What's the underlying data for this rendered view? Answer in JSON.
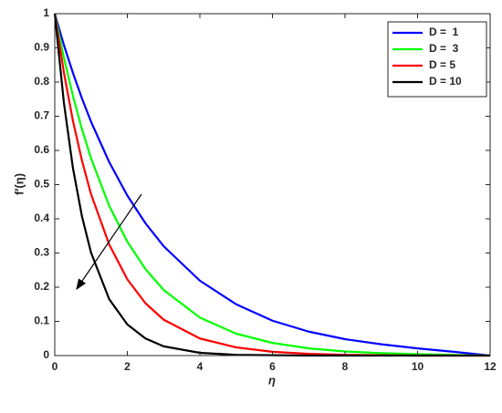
{
  "chart_data": {
    "type": "line",
    "xlabel": "η",
    "ylabel": "f′(η)",
    "x": [
      0,
      0.25,
      0.5,
      0.75,
      1,
      1.5,
      2,
      2.5,
      3,
      4,
      5,
      6,
      7,
      8,
      9,
      10,
      11,
      12
    ],
    "series": [
      {
        "name": "D =  1",
        "color": "#0000ff",
        "values": [
          1,
          0.909,
          0.827,
          0.752,
          0.684,
          0.566,
          0.468,
          0.387,
          0.32,
          0.219,
          0.15,
          0.102,
          0.07,
          0.048,
          0.033,
          0.021,
          0.011,
          0
        ]
      },
      {
        "name": "D =  3",
        "color": "#00ff00",
        "values": [
          1,
          0.872,
          0.76,
          0.662,
          0.577,
          0.438,
          0.333,
          0.253,
          0.192,
          0.111,
          0.064,
          0.037,
          0.021,
          0.012,
          0.007,
          0.004,
          0.002,
          0
        ]
      },
      {
        "name": "D = 5",
        "color": "#ff0000",
        "values": [
          1,
          0.829,
          0.687,
          0.57,
          0.472,
          0.325,
          0.223,
          0.153,
          0.105,
          0.05,
          0.024,
          0.011,
          0.005,
          0.002,
          0.001,
          0,
          0,
          0
        ]
      },
      {
        "name": "D = 10",
        "color": "#000000",
        "values": [
          1,
          0.741,
          0.549,
          0.407,
          0.301,
          0.165,
          0.091,
          0.05,
          0.027,
          0.008,
          0.002,
          0.001,
          0,
          0,
          0,
          0,
          0,
          0
        ]
      }
    ],
    "xlim": [
      0,
      12
    ],
    "xticks": [
      0,
      2,
      4,
      6,
      8,
      10,
      12
    ],
    "ylim": [
      0,
      1
    ],
    "yticks": [
      0,
      0.1,
      0.2,
      0.3,
      0.4,
      0.5,
      0.6,
      0.7,
      0.8,
      0.9,
      1
    ],
    "grid": false,
    "legend": "top-right"
  }
}
